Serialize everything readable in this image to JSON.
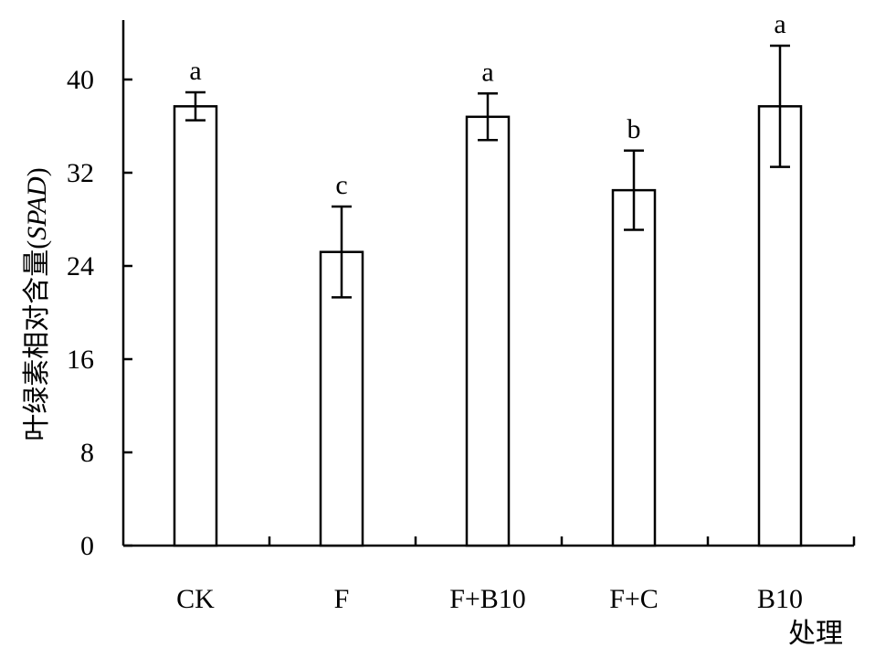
{
  "chart_data": {
    "type": "bar",
    "title": "",
    "xlabel": "处理",
    "ylabel_prefix": "叶绿素相对含量(",
    "ylabel_italic": "SPAD",
    "ylabel_suffix": ")",
    "categories": [
      "CK",
      "F",
      "F+B10",
      "F+C",
      "B10"
    ],
    "values": [
      37.7,
      25.2,
      36.8,
      30.5,
      37.7
    ],
    "errors": [
      1.2,
      3.9,
      2.0,
      3.4,
      5.2
    ],
    "significance": [
      "a",
      "c",
      "a",
      "b",
      "a"
    ],
    "ylim": [
      0,
      44
    ],
    "yticks": [
      0,
      8,
      16,
      24,
      32,
      40
    ],
    "grid": false,
    "bar_fill": "#ffffff",
    "bar_stroke": "#000000"
  }
}
